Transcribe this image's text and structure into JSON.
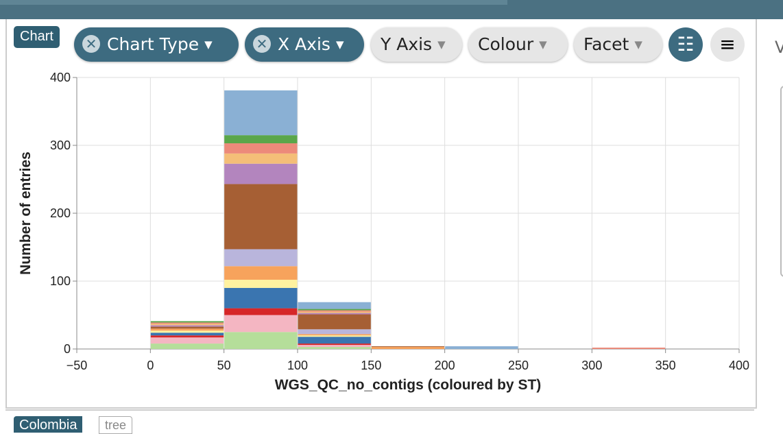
{
  "toolbar": {
    "badge": "Chart",
    "buttons": [
      "Chart Type",
      "X Axis",
      "Y Axis",
      "Colour",
      "Facet"
    ]
  },
  "side_letter": "V",
  "bottom_panel": {
    "title": "Colombia",
    "tag": "tree"
  },
  "chart_data": {
    "type": "histogram",
    "xlabel": "WGS_QC_no_contigs (coloured by ST)",
    "ylabel": "Number of entries",
    "bins": [
      0,
      50,
      100,
      150,
      200,
      250,
      300,
      350
    ],
    "series": [
      {
        "color": "#b5de9a",
        "values": [
          8,
          25,
          3,
          0,
          0,
          0,
          0
        ]
      },
      {
        "color": "#f4b6c2",
        "values": [
          9,
          25,
          3,
          0,
          0,
          0,
          0
        ]
      },
      {
        "color": "#d62728",
        "values": [
          3,
          10,
          2,
          0,
          0,
          0,
          0
        ]
      },
      {
        "color": "#3a75b0",
        "values": [
          4,
          30,
          10,
          0,
          0,
          0,
          0
        ]
      },
      {
        "color": "#fff2a0",
        "values": [
          3,
          12,
          2,
          0,
          0,
          0,
          0
        ]
      },
      {
        "color": "#f7a35c",
        "values": [
          3,
          20,
          2,
          3,
          0,
          0,
          0
        ]
      },
      {
        "color": "#b9b5dc",
        "values": [
          0,
          25,
          7,
          0,
          0,
          0,
          0
        ]
      },
      {
        "color": "#a65f34",
        "values": [
          3,
          96,
          22,
          1,
          0,
          0,
          0
        ]
      },
      {
        "color": "#b385be",
        "values": [
          2,
          30,
          2,
          0,
          0,
          0,
          0
        ]
      },
      {
        "color": "#f4be78",
        "values": [
          2,
          15,
          2,
          0,
          0,
          0,
          0
        ]
      },
      {
        "color": "#ec8a7a",
        "values": [
          2,
          15,
          2,
          0,
          0,
          0,
          2
        ]
      },
      {
        "color": "#5aa64a",
        "values": [
          2,
          12,
          2,
          0,
          0,
          0,
          0
        ]
      },
      {
        "color": "#8ab0d4",
        "values": [
          0,
          66,
          10,
          0,
          4,
          0,
          0
        ]
      }
    ],
    "xlim": [
      -50,
      400
    ],
    "xticks": [
      {
        "value": -50,
        "label": "−50"
      },
      0,
      50,
      100,
      150,
      200,
      250,
      300,
      350,
      400
    ],
    "ylim": [
      0,
      400
    ],
    "yticks": [
      0,
      100,
      200,
      300,
      400
    ],
    "grid": true
  }
}
